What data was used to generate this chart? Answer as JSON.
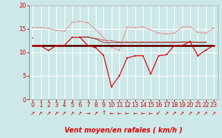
{
  "hours": [
    0,
    1,
    2,
    3,
    4,
    5,
    6,
    7,
    8,
    9,
    10,
    11,
    12,
    13,
    14,
    15,
    16,
    17,
    18,
    19,
    20,
    21,
    22,
    23
  ],
  "bg_color": "#cce8e8",
  "grid_color": "#ffffff",
  "xlabel": "Vent moyen/en rafales ( km/h )",
  "ylim": [
    0,
    20
  ],
  "yticks": [
    0,
    5,
    10,
    15,
    20
  ],
  "line_light_pink": [
    15.3,
    15.3,
    15.1,
    14.7,
    14.5,
    16.4,
    16.6,
    16.3,
    14.9,
    13.2,
    11.1,
    10.5,
    15.4,
    15.3,
    15.5,
    14.8,
    14.1,
    13.9,
    14.1,
    15.4,
    15.5,
    14.3,
    14.1,
    15.2
  ],
  "line_medium_pink": [
    13.1,
    null,
    null,
    null,
    null,
    null,
    13.2,
    13.2,
    13.0,
    12.6,
    12.5,
    12.2,
    12.2,
    12.2,
    12.2,
    12.2,
    12.2,
    12.2,
    12.2,
    12.2,
    12.2,
    12.2,
    12.2,
    null
  ],
  "line_dark_red_thick": [
    11.5,
    11.5,
    11.5,
    11.5,
    11.5,
    11.5,
    11.5,
    11.5,
    11.5,
    11.5,
    11.5,
    11.5,
    11.5,
    11.5,
    11.5,
    11.5,
    11.5,
    11.5,
    11.5,
    11.5,
    11.5,
    11.5,
    11.5,
    11.5
  ],
  "line_dark_thin1": [
    13.1,
    null,
    null,
    null,
    null,
    null,
    13.3,
    13.3,
    12.9,
    12.1,
    12.1,
    12.1,
    12.1,
    12.1,
    12.1,
    12.1,
    12.1,
    12.1,
    12.1,
    12.2,
    12.2,
    12.1,
    12.1,
    null
  ],
  "line_red_main": [
    11.5,
    11.4,
    10.4,
    11.5,
    11.5,
    13.2,
    13.2,
    11.5,
    11.0,
    9.4,
    2.7,
    5.0,
    8.8,
    9.3,
    9.3,
    5.4,
    9.3,
    9.5,
    11.5,
    11.5,
    12.3,
    9.3,
    10.5,
    11.5
  ],
  "color_light_pink": "#e89898",
  "color_medium_pink": "#c07070",
  "color_dark_red_thick": "#600000",
  "color_dark_thin1": "#902020",
  "color_red_main": "#dd0000",
  "arrow_directions": [
    1,
    1,
    1,
    1,
    1,
    1,
    1,
    1,
    1,
    0,
    -1,
    -1,
    -1,
    -1,
    -1,
    -1,
    0,
    1,
    1,
    1,
    1,
    1,
    1,
    1
  ],
  "arrow_color": "#cc2222",
  "axis_label_fontsize": 7,
  "tick_fontsize": 6
}
